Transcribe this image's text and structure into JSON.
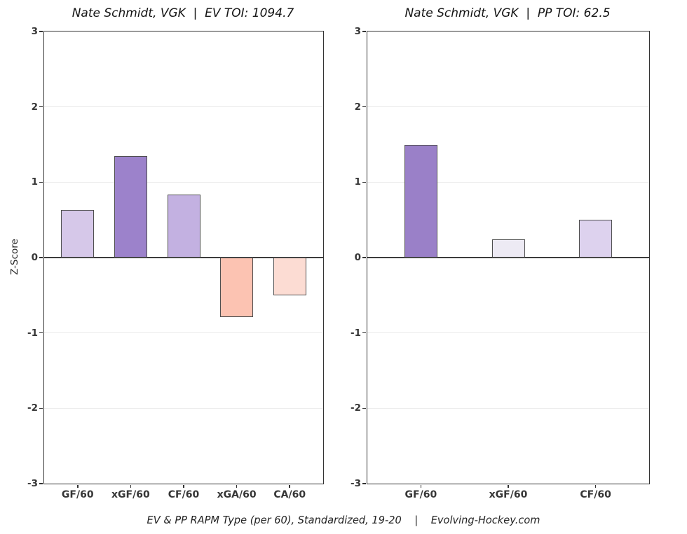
{
  "figure": {
    "caption": "EV & PP RAPM Type (per 60), Standardized, 19-20    |    Evolving-Hockey.com"
  },
  "colors": {
    "axis": "#333333",
    "zero_line": "#3d3d3d",
    "grid": "#ececec",
    "bar_edge": "#4f4f4f",
    "tick_text": "#363636",
    "title_text": "#141414"
  },
  "chart_data": [
    {
      "type": "bar",
      "title": "Nate Schmidt, VGK  |  EV TOI: 1094.7",
      "categories": [
        "GF/60",
        "xGF/60",
        "CF/60",
        "xGA/60",
        "CA/60"
      ],
      "values": [
        0.63,
        1.35,
        0.84,
        -0.79,
        -0.5
      ],
      "bar_colors": [
        "#d6c8e9",
        "#9c82cb",
        "#c3b1e1",
        "#fcc3b2",
        "#fcdcd3"
      ],
      "ylabel": "Z-Score",
      "xlabel": "",
      "ylim": [
        -3,
        3
      ],
      "yticks": [
        3,
        2,
        1,
        0,
        -1,
        -2,
        -3
      ],
      "grid": true,
      "x_margin_frac": 0.12
    },
    {
      "type": "bar",
      "title": "Nate Schmidt, VGK  |  PP TOI: 62.5",
      "categories": [
        "GF/60",
        "xGF/60",
        "CF/60"
      ],
      "values": [
        1.5,
        0.24,
        0.5
      ],
      "bar_colors": [
        "#9a80c8",
        "#edeaf4",
        "#ddd2ee"
      ],
      "ylabel": "",
      "xlabel": "",
      "ylim": [
        -3,
        3
      ],
      "yticks": [
        3,
        2,
        1,
        0,
        -1,
        -2,
        -3
      ],
      "grid": true,
      "x_margin_frac": 0.19
    }
  ]
}
